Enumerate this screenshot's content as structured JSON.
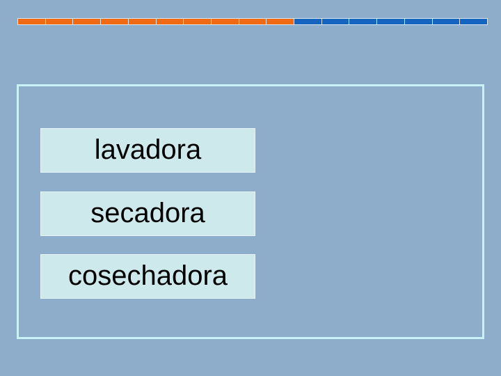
{
  "progress": {
    "total_segments": 17,
    "completed_segments": 10,
    "completed_color": "#f06a14",
    "remaining_color": "#1565c0"
  },
  "options": [
    {
      "label": "lavadora"
    },
    {
      "label": "secadora"
    },
    {
      "label": "cosechadora"
    }
  ]
}
